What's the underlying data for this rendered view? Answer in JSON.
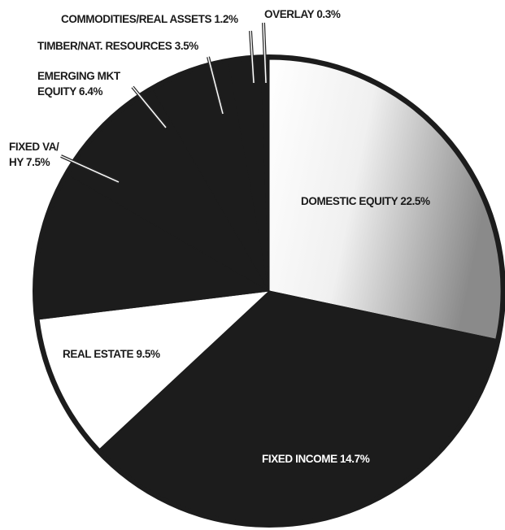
{
  "chart_data": {
    "type": "pie",
    "slices": [
      {
        "label": "DOMESTIC EQUITY",
        "value": 22.5,
        "display": "DOMESTIC EQUITY 22.5%",
        "fill": "gradient-light"
      },
      {
        "label": "FIXED INCOME",
        "value": 14.7,
        "display": "FIXED INCOME 14.7%",
        "fill": "#1c1c1c"
      },
      {
        "label": "REAL ESTATE",
        "value": 9.5,
        "display": "REAL ESTATE 9.5%",
        "fill": "#ffffff"
      },
      {
        "label": "FIXED VA/ HY",
        "value": 7.5,
        "display_lines": [
          "FIXED VA/",
          "HY 7.5%"
        ],
        "fill": "#1c1c1c"
      },
      {
        "label": "EMERGING MKT EQUITY",
        "value": 6.4,
        "display_lines": [
          "EMERGING MKT",
          "EQUITY 6.4%"
        ],
        "fill": "#1c1c1c"
      },
      {
        "label": "TIMBER/NAT. RESOURCES",
        "value": 3.5,
        "display": "TIMBER/NAT. RESOURCES 3.5%",
        "fill": "#1c1c1c"
      },
      {
        "label": "COMMODITIES/REAL ASSETS",
        "value": 1.2,
        "display": "COMMODITIES/REAL ASSETS 1.2%",
        "fill": "#1c1c1c"
      },
      {
        "label": "OVERLAY",
        "value": 0.3,
        "display": "OVERLAY 0.3%",
        "fill": "#1c1c1c"
      }
    ],
    "colors": {
      "dark": "#1c1c1c",
      "light": "#ffffff",
      "gradient_start": "#ffffff",
      "gradient_end": "#8a8a8a"
    }
  }
}
